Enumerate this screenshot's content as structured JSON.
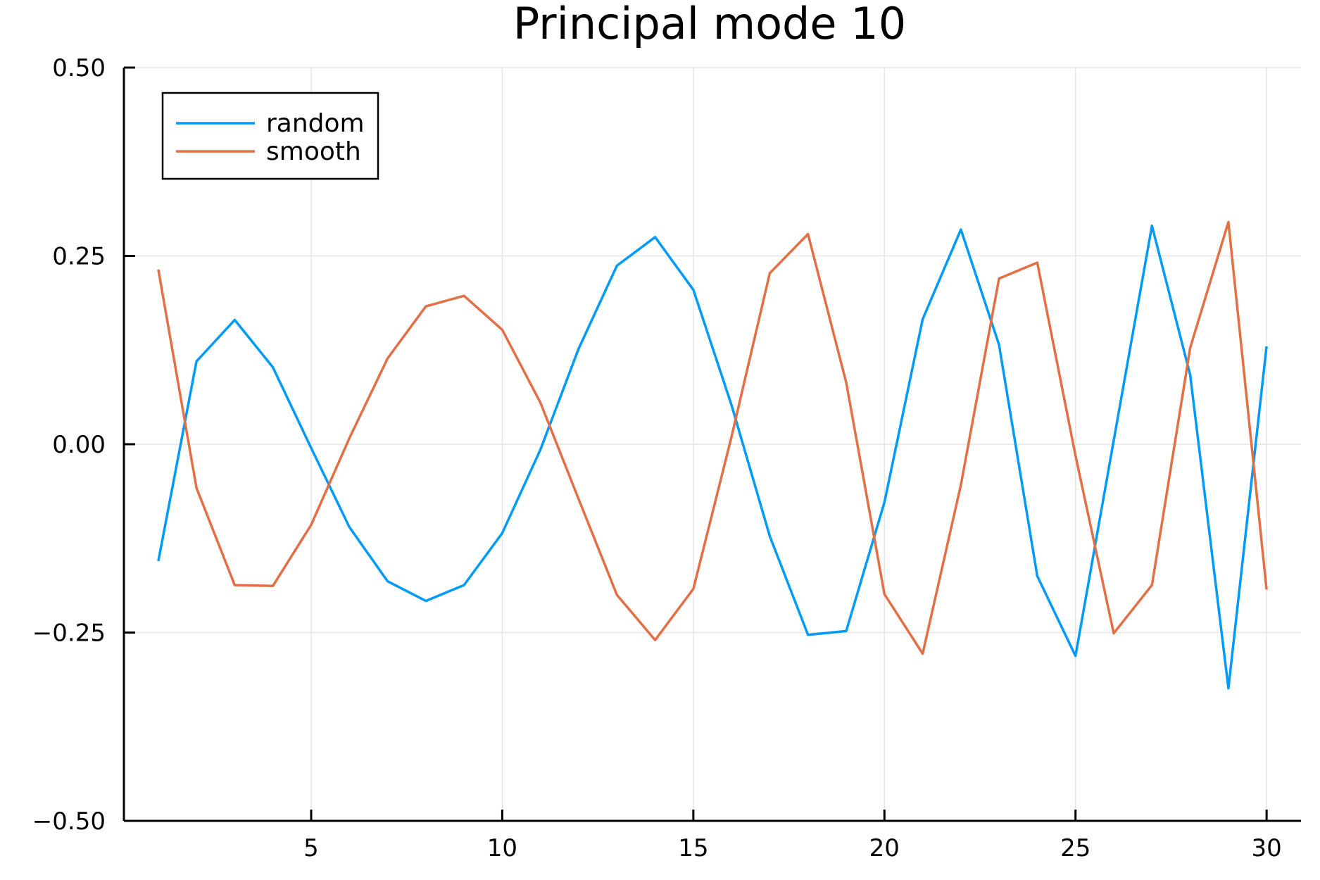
{
  "chart_data": {
    "type": "line",
    "title": "Principal mode 10",
    "xlabel": "",
    "ylabel": "",
    "xlim": [
      0.1,
      30.9
    ],
    "ylim": [
      -0.5,
      0.5
    ],
    "x_ticks": [
      5,
      10,
      15,
      20,
      25,
      30
    ],
    "x_tick_labels": [
      "5",
      "10",
      "15",
      "20",
      "25",
      "30"
    ],
    "y_ticks": [
      -0.5,
      -0.25,
      0,
      0.25,
      0.5
    ],
    "y_tick_labels": [
      "−0.50",
      "−0.25",
      "0.00",
      "0.25",
      "0.50"
    ],
    "grid": true,
    "legend_position": "top-left",
    "x": [
      1,
      2,
      3,
      4,
      5,
      6,
      7,
      8,
      9,
      10,
      11,
      12,
      13,
      14,
      15,
      16,
      17,
      18,
      19,
      20,
      21,
      22,
      23,
      24,
      25,
      26,
      27,
      28,
      29,
      30
    ],
    "series": [
      {
        "name": "random",
        "color": "#009af9",
        "values": [
          -0.155,
          0.11,
          0.165,
          0.102,
          -0.005,
          -0.11,
          -0.182,
          -0.208,
          -0.187,
          -0.118,
          -0.007,
          0.127,
          0.237,
          0.275,
          0.205,
          0.052,
          -0.122,
          -0.253,
          -0.248,
          -0.077,
          0.166,
          0.285,
          0.132,
          -0.175,
          -0.281,
          0.005,
          0.29,
          0.092,
          -0.324,
          0.13
        ]
      },
      {
        "name": "smooth",
        "color": "#e26f46",
        "values": [
          0.232,
          -0.058,
          -0.187,
          -0.188,
          -0.107,
          0.008,
          0.114,
          0.183,
          0.197,
          0.152,
          0.055,
          -0.073,
          -0.2,
          -0.26,
          -0.192,
          0.01,
          0.227,
          0.279,
          0.082,
          -0.199,
          -0.278,
          -0.054,
          0.22,
          0.241,
          -0.015,
          -0.251,
          -0.187,
          0.128,
          0.295,
          -0.193
        ]
      }
    ]
  }
}
